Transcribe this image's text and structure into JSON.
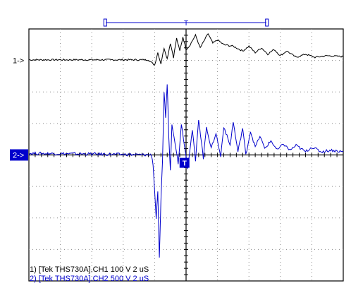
{
  "chart_data": {
    "type": "line",
    "grid": true,
    "divisions": {
      "x": 10,
      "y": 8
    },
    "x_unit": "div",
    "ylim": [
      -4,
      4
    ],
    "xlim": [
      -5,
      5
    ],
    "channel_markers": [
      {
        "label": "1->",
        "level": 3,
        "color": "#000000"
      },
      {
        "label": "2->",
        "level": 0,
        "color": "#0000cc"
      }
    ],
    "trigger_marker": {
      "label": "T",
      "x": -0.05,
      "level": -0.25
    },
    "timebase_bar": {
      "start": -2.55,
      "end": 2.55,
      "marker": "T"
    },
    "series": [
      {
        "name": "1) [Tek THS730A].CH1 100 V 2 uS",
        "color": "#000000",
        "points": [
          [
            -5,
            3.02
          ],
          [
            -3,
            3.02
          ],
          [
            -1.2,
            3.02
          ],
          [
            -1.0,
            2.85
          ],
          [
            -0.9,
            3.25
          ],
          [
            -0.8,
            2.9
          ],
          [
            -0.7,
            3.4
          ],
          [
            -0.6,
            3.05
          ],
          [
            -0.5,
            3.55
          ],
          [
            -0.4,
            3.1
          ],
          [
            -0.3,
            3.7
          ],
          [
            -0.2,
            3.3
          ],
          [
            -0.1,
            3.75
          ],
          [
            0,
            3.35
          ],
          [
            0.1,
            3.45
          ],
          [
            0.3,
            3.8
          ],
          [
            0.45,
            3.4
          ],
          [
            0.7,
            3.85
          ],
          [
            0.85,
            3.55
          ],
          [
            1.0,
            3.65
          ],
          [
            1.2,
            3.5
          ],
          [
            1.5,
            3.45
          ],
          [
            1.8,
            3.3
          ],
          [
            2.0,
            3.45
          ],
          [
            2.2,
            3.25
          ],
          [
            2.4,
            3.4
          ],
          [
            2.6,
            3.2
          ],
          [
            2.8,
            3.35
          ],
          [
            3.0,
            3.15
          ],
          [
            3.2,
            3.3
          ],
          [
            3.5,
            3.1
          ],
          [
            3.8,
            3.2
          ],
          [
            4.1,
            3.1
          ],
          [
            4.5,
            3.15
          ],
          [
            5,
            3.12
          ]
        ]
      },
      {
        "name": "2) [Tek THS730A].CH2 500 V 2 uS",
        "color": "#0000cc",
        "points": [
          [
            -5,
            0.05
          ],
          [
            -3,
            0.03
          ],
          [
            -1.1,
            0.0
          ],
          [
            -1.05,
            -0.3
          ],
          [
            -0.95,
            -2.0
          ],
          [
            -0.9,
            -1.2
          ],
          [
            -0.85,
            -3.3
          ],
          [
            -0.8,
            -1.5
          ],
          [
            -0.75,
            -0.2
          ],
          [
            -0.7,
            2.0
          ],
          [
            -0.65,
            1.2
          ],
          [
            -0.6,
            2.25
          ],
          [
            -0.55,
            0.6
          ],
          [
            -0.5,
            -0.5
          ],
          [
            -0.45,
            1.0
          ],
          [
            -0.35,
            0.4
          ],
          [
            -0.25,
            -0.3
          ],
          [
            -0.15,
            1.0
          ],
          [
            -0.05,
            0.3
          ],
          [
            0.05,
            -0.4
          ],
          [
            0.2,
            0.8
          ],
          [
            0.3,
            -0.2
          ],
          [
            0.4,
            1.15
          ],
          [
            0.55,
            -0.1
          ],
          [
            0.65,
            0.9
          ],
          [
            0.8,
            0.2
          ],
          [
            0.95,
            0.7
          ],
          [
            1.1,
            -0.05
          ],
          [
            1.2,
            0.9
          ],
          [
            1.4,
            0.3
          ],
          [
            1.5,
            1.05
          ],
          [
            1.65,
            0.1
          ],
          [
            1.8,
            0.85
          ],
          [
            1.9,
            0.0
          ],
          [
            2.05,
            0.75
          ],
          [
            2.2,
            0.25
          ],
          [
            2.35,
            0.6
          ],
          [
            2.5,
            0.2
          ],
          [
            2.7,
            0.45
          ],
          [
            2.9,
            0.15
          ],
          [
            3.1,
            0.35
          ],
          [
            3.3,
            0.15
          ],
          [
            3.5,
            0.3
          ],
          [
            3.8,
            0.1
          ],
          [
            4.0,
            0.25
          ],
          [
            4.3,
            0.1
          ],
          [
            4.6,
            0.15
          ],
          [
            5,
            0.1
          ]
        ]
      }
    ]
  }
}
